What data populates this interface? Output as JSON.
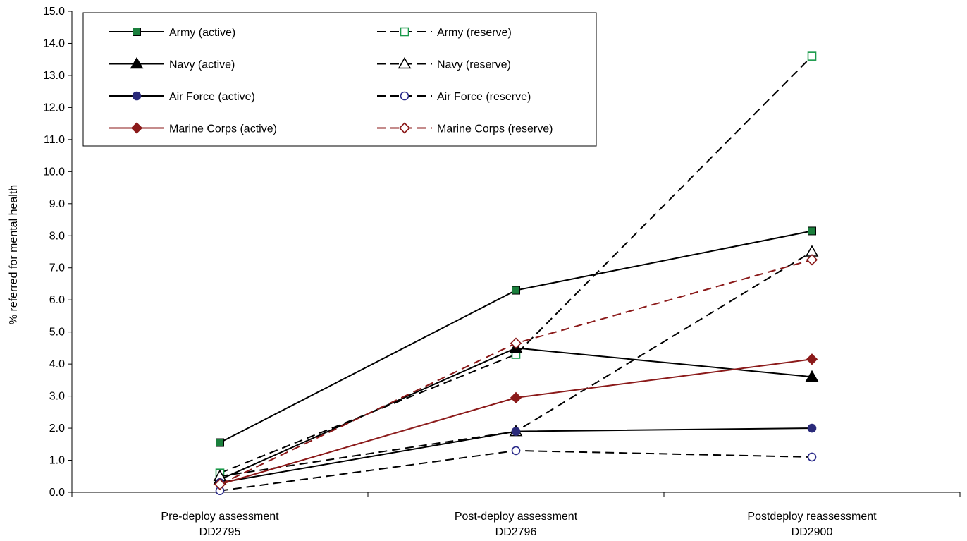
{
  "chart_data": {
    "type": "line",
    "ylabel": "% referred for mental health",
    "xlabel": "",
    "ylim": [
      0,
      15
    ],
    "y_ticks": [
      "0.0",
      "1.0",
      "2.0",
      "3.0",
      "4.0",
      "5.0",
      "6.0",
      "7.0",
      "8.0",
      "9.0",
      "10.0",
      "11.0",
      "12.0",
      "13.0",
      "14.0",
      "15.0"
    ],
    "categories": [
      [
        "Pre-deploy assessment",
        "DD2795"
      ],
      [
        "Post-deploy assessment",
        "DD2796"
      ],
      [
        "Postdeploy reassessment",
        "DD2900"
      ]
    ],
    "legend_position": "top-left",
    "grid": false,
    "series": [
      {
        "name": "Army (active)",
        "values": [
          1.55,
          6.3,
          8.15
        ],
        "color": "#000000",
        "marker_color": "#1a7f3c",
        "marker": "square",
        "filled": true,
        "dashed": false
      },
      {
        "name": "Army (reserve)",
        "values": [
          0.6,
          4.3,
          13.6
        ],
        "color": "#000000",
        "marker_color": "#1a9a4a",
        "marker": "square",
        "filled": false,
        "dashed": true
      },
      {
        "name": "Navy (active)",
        "values": [
          0.4,
          4.5,
          3.6
        ],
        "color": "#000000",
        "marker_color": "#000000",
        "marker": "triangle",
        "filled": true,
        "dashed": false
      },
      {
        "name": "Navy (reserve)",
        "values": [
          0.5,
          1.9,
          7.5
        ],
        "color": "#000000",
        "marker_color": "#000000",
        "marker": "triangle",
        "filled": false,
        "dashed": true
      },
      {
        "name": "Air Force (active)",
        "values": [
          0.3,
          1.9,
          2.0
        ],
        "color": "#000000",
        "marker_color": "#2a2a7a",
        "marker": "circle",
        "filled": true,
        "dashed": false
      },
      {
        "name": "Air Force (reserve)",
        "values": [
          0.05,
          1.3,
          1.1
        ],
        "color": "#000000",
        "marker_color": "#2a2a8a",
        "marker": "circle",
        "filled": false,
        "dashed": true
      },
      {
        "name": "Marine Corps (active)",
        "values": [
          0.25,
          2.95,
          4.15
        ],
        "color": "#8b1a1a",
        "marker_color": "#8b1a1a",
        "marker": "diamond",
        "filled": true,
        "dashed": false
      },
      {
        "name": "Marine Corps (reserve)",
        "values": [
          0.25,
          4.65,
          7.25
        ],
        "color": "#8b1a1a",
        "marker_color": "#8b1a1a",
        "marker": "diamond",
        "filled": false,
        "dashed": true
      }
    ]
  }
}
